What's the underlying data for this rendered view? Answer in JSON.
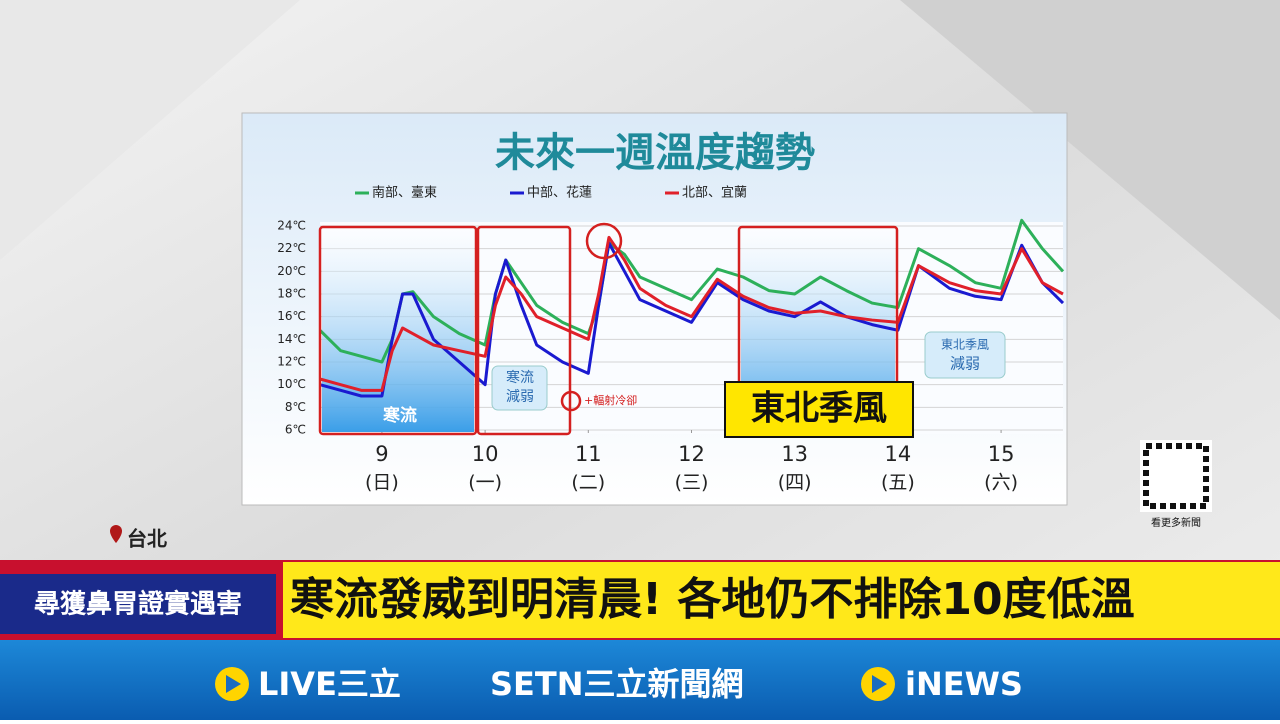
{
  "chart_data": {
    "type": "line",
    "title": "未來一週溫度趨勢",
    "x": [
      8.4,
      8.6,
      8.8,
      9.0,
      9.1,
      9.2,
      9.3,
      9.5,
      9.75,
      10.0,
      10.1,
      10.2,
      10.35,
      10.5,
      10.75,
      11.0,
      11.1,
      11.2,
      11.35,
      11.5,
      11.75,
      12.0,
      12.25,
      12.5,
      12.75,
      13.0,
      13.25,
      13.5,
      13.75,
      14.0,
      14.2,
      14.5,
      14.75,
      15.0,
      15.2,
      15.4,
      15.6
    ],
    "series": [
      {
        "name": "南部、臺東",
        "color": "#2db05a",
        "values": [
          14.8,
          13,
          12.5,
          12,
          14,
          18,
          18.2,
          16,
          14.5,
          13.5,
          18,
          21,
          19,
          17,
          15.5,
          14.5,
          17,
          22.5,
          21.5,
          19.5,
          18.5,
          17.5,
          20.2,
          19.5,
          18.3,
          18,
          19.5,
          18.3,
          17.2,
          16.8,
          22,
          20.5,
          19,
          18.5,
          24.5,
          22,
          20
        ]
      },
      {
        "name": "中部、花蓮",
        "color": "#1a1ad0",
        "values": [
          10,
          9.5,
          9,
          9,
          14,
          18,
          18,
          14,
          12,
          10,
          18,
          21,
          17,
          13.5,
          12,
          11,
          17,
          22.5,
          20,
          17.5,
          16.5,
          15.5,
          19,
          17.5,
          16.5,
          16,
          17.3,
          16,
          15.3,
          14.8,
          20.5,
          18.5,
          17.8,
          17.5,
          22.3,
          19,
          17.2
        ]
      },
      {
        "name": "北部、宜蘭",
        "color": "#e0202a",
        "values": [
          10.5,
          10,
          9.5,
          9.5,
          13,
          15,
          14.5,
          13.5,
          13,
          12.5,
          17,
          19.5,
          18,
          16,
          15,
          14,
          18,
          23,
          21,
          18.5,
          17,
          16,
          19.3,
          17.8,
          16.8,
          16.3,
          16.5,
          16,
          15.7,
          15.5,
          20.5,
          19,
          18.3,
          18,
          22,
          19,
          18
        ]
      }
    ],
    "xlim": [
      8.4,
      15.6
    ],
    "xticks": [
      9,
      10,
      11,
      12,
      13,
      14,
      15
    ],
    "xtick_sublabels": [
      "(日)",
      "(一)",
      "(二)",
      "(三)",
      "(四)",
      "(五)",
      "(六)"
    ],
    "ylim": [
      6,
      24
    ],
    "yticks": [
      {
        "value": 6,
        "label": "6℃"
      },
      {
        "value": 8,
        "label": "8℃"
      },
      {
        "value": 10,
        "label": "10℃"
      },
      {
        "value": 12,
        "label": "12℃"
      },
      {
        "value": 14,
        "label": "14℃"
      },
      {
        "value": 16,
        "label": "16℃"
      },
      {
        "value": 18,
        "label": "18℃"
      },
      {
        "value": 20,
        "label": "20℃"
      },
      {
        "value": 22,
        "label": "22℃"
      },
      {
        "value": 24,
        "label": "24℃"
      }
    ],
    "grid": true,
    "annotations": [
      "寒流",
      "寒流",
      "減弱",
      "+輻射冷卻",
      "東北季風",
      "東北季風",
      "減弱"
    ]
  },
  "overlay": {
    "location": "台北",
    "side_headline": "尋獲鼻胃證實遇害",
    "headline": "寒流發威到明清晨! 各地仍不排除10度低溫",
    "logos": [
      "LIVE三立",
      "SETN三立新聞網",
      "iNEWS"
    ],
    "qr_caption": "看更多新聞"
  }
}
